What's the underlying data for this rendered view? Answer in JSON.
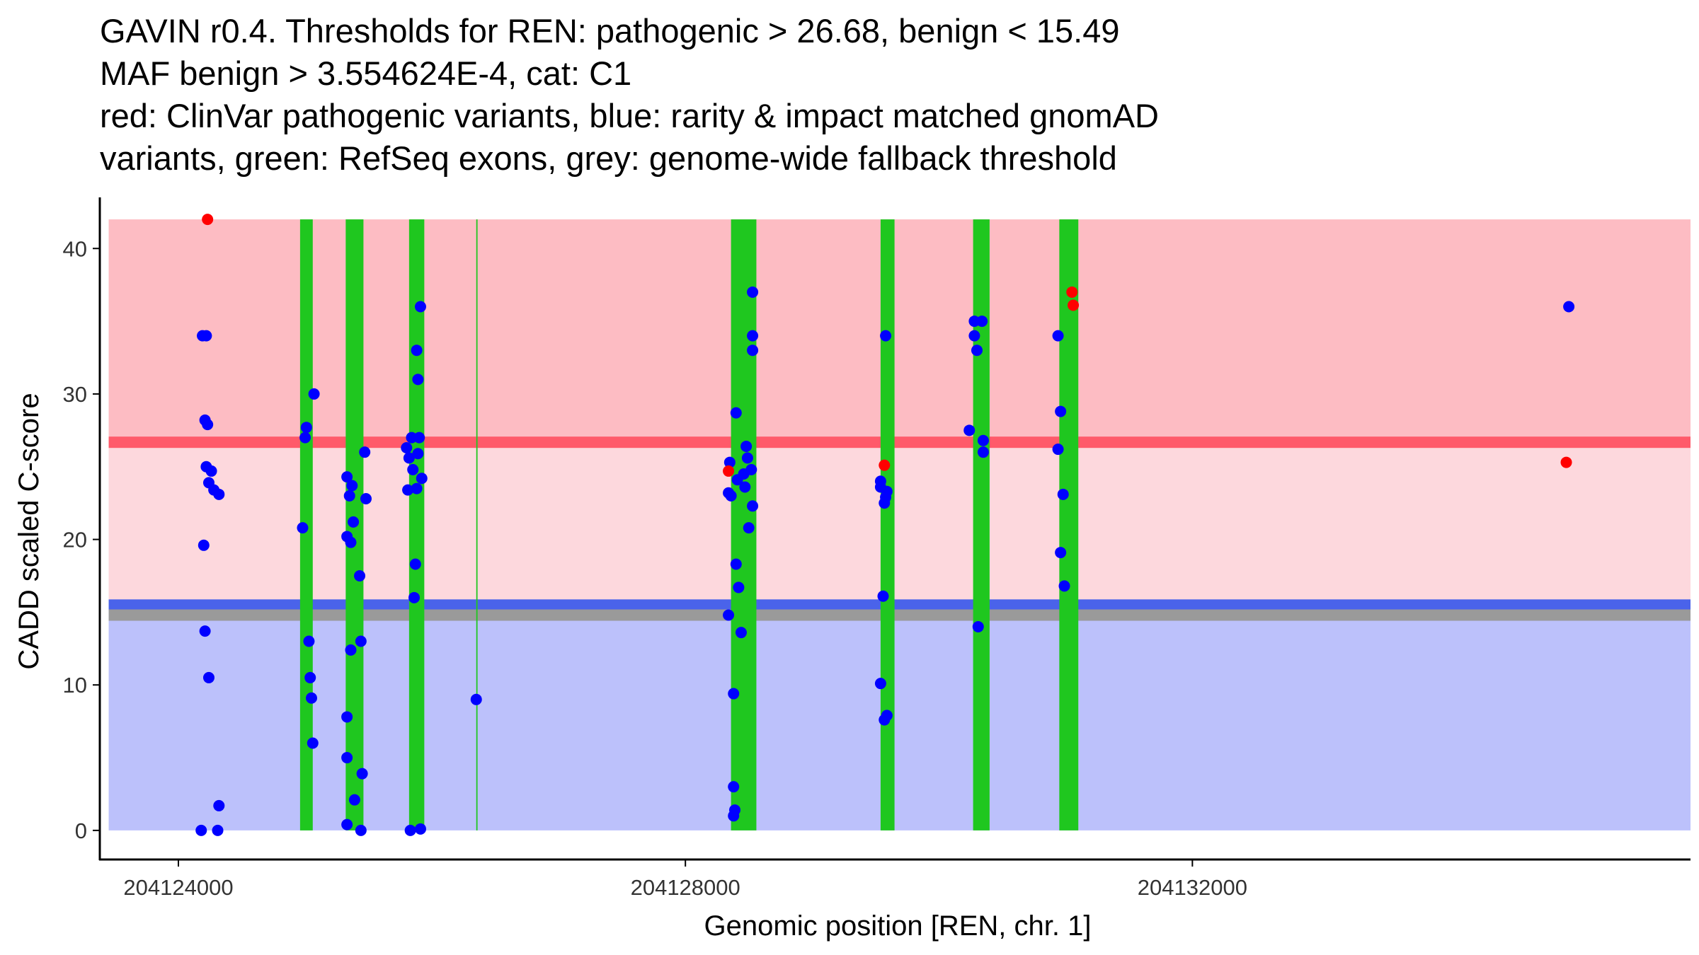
{
  "chart_data": {
    "type": "scatter",
    "title_lines": [
      "GAVIN r0.4. Thresholds for REN: pathogenic > 26.68, benign < 15.49",
      "MAF benign > 3.554624E-4, cat: C1",
      "red: ClinVar pathogenic variants, blue: rarity & impact matched gnomAD",
      "variants, green: RefSeq exons, grey: genome-wide fallback threshold"
    ],
    "xlabel": "Genomic position [REN, chr. 1]",
    "ylabel": "CADD scaled C-score",
    "xlim": [
      204123380,
      204135930
    ],
    "ylim": [
      -2,
      44
    ],
    "x_ticks": [
      204124000,
      204128000,
      204132000
    ],
    "x_tick_labels": [
      "204124000",
      "204128000",
      "204132000"
    ],
    "y_ticks": [
      0,
      10,
      20,
      30,
      40
    ],
    "y_tick_labels": [
      "0",
      "10",
      "20",
      "30",
      "40"
    ],
    "region_x_range": [
      204123450,
      204135930
    ],
    "bands": [
      {
        "name": "pathogenic-zone",
        "y0": 26.68,
        "y1": 42,
        "color": "#fdbcc3"
      },
      {
        "name": "uncertain-zone",
        "y0": 15.49,
        "y1": 26.68,
        "color": "#fdd8dd"
      },
      {
        "name": "benign-zone",
        "y0": 0,
        "y1": 15.49,
        "color": "#bcc1fb"
      }
    ],
    "threshold_lines": [
      {
        "name": "pathogenic-threshold",
        "y": 26.68,
        "color": "#ff5a6a"
      },
      {
        "name": "benign-threshold",
        "y": 15.49,
        "color": "#4a63ea"
      },
      {
        "name": "fallback-threshold",
        "y": 14.8,
        "color": "#9a9a9a"
      }
    ],
    "exons": [
      {
        "start": 204124960,
        "end": 204125060
      },
      {
        "start": 204125320,
        "end": 204125460
      },
      {
        "start": 204125820,
        "end": 204125940
      },
      {
        "start": 204126350,
        "end": 204126360
      },
      {
        "start": 204128360,
        "end": 204128560
      },
      {
        "start": 204129540,
        "end": 204129650
      },
      {
        "start": 204130270,
        "end": 204130400
      },
      {
        "start": 204130950,
        "end": 204131100
      }
    ],
    "series": [
      {
        "name": "ClinVar pathogenic variants",
        "color": "#ff0000",
        "points": [
          {
            "x": 204124230,
            "y": 42
          },
          {
            "x": 204128340,
            "y": 24.7
          },
          {
            "x": 204129570,
            "y": 25.1
          },
          {
            "x": 204131050,
            "y": 37
          },
          {
            "x": 204131060,
            "y": 36.1
          },
          {
            "x": 204134950,
            "y": 25.3
          }
        ]
      },
      {
        "name": "rarity & impact matched gnomAD variants",
        "color": "#0000ff",
        "points": [
          {
            "x": 204124180,
            "y": 0
          },
          {
            "x": 204124310,
            "y": 0
          },
          {
            "x": 204124190,
            "y": 34
          },
          {
            "x": 204124220,
            "y": 34
          },
          {
            "x": 204124210,
            "y": 28.2
          },
          {
            "x": 204124230,
            "y": 27.9
          },
          {
            "x": 204124220,
            "y": 25
          },
          {
            "x": 204124260,
            "y": 24.7
          },
          {
            "x": 204124240,
            "y": 23.9
          },
          {
            "x": 204124280,
            "y": 23.4
          },
          {
            "x": 204124320,
            "y": 23.1
          },
          {
            "x": 204124200,
            "y": 19.6
          },
          {
            "x": 204124210,
            "y": 13.7
          },
          {
            "x": 204124240,
            "y": 10.5
          },
          {
            "x": 204124320,
            "y": 1.7
          },
          {
            "x": 204124980,
            "y": 20.8
          },
          {
            "x": 204125010,
            "y": 27.7
          },
          {
            "x": 204125000,
            "y": 27
          },
          {
            "x": 204125070,
            "y": 30
          },
          {
            "x": 204125030,
            "y": 13
          },
          {
            "x": 204125040,
            "y": 10.5
          },
          {
            "x": 204125050,
            "y": 9.1
          },
          {
            "x": 204125060,
            "y": 6
          },
          {
            "x": 204125330,
            "y": 24.3
          },
          {
            "x": 204125370,
            "y": 23.7
          },
          {
            "x": 204125350,
            "y": 23
          },
          {
            "x": 204125380,
            "y": 21.2
          },
          {
            "x": 204125330,
            "y": 20.2
          },
          {
            "x": 204125360,
            "y": 19.8
          },
          {
            "x": 204125430,
            "y": 17.5
          },
          {
            "x": 204125470,
            "y": 26
          },
          {
            "x": 204125480,
            "y": 22.8
          },
          {
            "x": 204125440,
            "y": 13
          },
          {
            "x": 204125360,
            "y": 12.4
          },
          {
            "x": 204125330,
            "y": 7.8
          },
          {
            "x": 204125330,
            "y": 5
          },
          {
            "x": 204125450,
            "y": 3.9
          },
          {
            "x": 204125390,
            "y": 2.1
          },
          {
            "x": 204125330,
            "y": 0.4
          },
          {
            "x": 204125440,
            "y": 0
          },
          {
            "x": 204125800,
            "y": 26.3
          },
          {
            "x": 204125840,
            "y": 27
          },
          {
            "x": 204125900,
            "y": 27
          },
          {
            "x": 204125820,
            "y": 25.6
          },
          {
            "x": 204125890,
            "y": 25.9
          },
          {
            "x": 204125850,
            "y": 24.8
          },
          {
            "x": 204125920,
            "y": 24.2
          },
          {
            "x": 204125810,
            "y": 23.4
          },
          {
            "x": 204125880,
            "y": 23.5
          },
          {
            "x": 204125860,
            "y": 16
          },
          {
            "x": 204125870,
            "y": 18.3
          },
          {
            "x": 204125880,
            "y": 33
          },
          {
            "x": 204125890,
            "y": 31
          },
          {
            "x": 204125910,
            "y": 36
          },
          {
            "x": 204125830,
            "y": 0
          },
          {
            "x": 204125910,
            "y": 0.1
          },
          {
            "x": 204126350,
            "y": 9
          },
          {
            "x": 204128350,
            "y": 25.3
          },
          {
            "x": 204128340,
            "y": 23.2
          },
          {
            "x": 204128360,
            "y": 23
          },
          {
            "x": 204128400,
            "y": 28.7
          },
          {
            "x": 204128410,
            "y": 24.1
          },
          {
            "x": 204128460,
            "y": 24.5
          },
          {
            "x": 204128480,
            "y": 26.4
          },
          {
            "x": 204128490,
            "y": 25.6
          },
          {
            "x": 204128520,
            "y": 24.8
          },
          {
            "x": 204128470,
            "y": 23.6
          },
          {
            "x": 204128530,
            "y": 22.3
          },
          {
            "x": 204128500,
            "y": 20.8
          },
          {
            "x": 204128400,
            "y": 18.3
          },
          {
            "x": 204128420,
            "y": 16.7
          },
          {
            "x": 204128340,
            "y": 14.8
          },
          {
            "x": 204128440,
            "y": 13.6
          },
          {
            "x": 204128380,
            "y": 9.4
          },
          {
            "x": 204128380,
            "y": 3
          },
          {
            "x": 204128390,
            "y": 1.4
          },
          {
            "x": 204128380,
            "y": 1
          },
          {
            "x": 204128530,
            "y": 37
          },
          {
            "x": 204128530,
            "y": 34
          },
          {
            "x": 204128530,
            "y": 33
          },
          {
            "x": 204129540,
            "y": 24
          },
          {
            "x": 204129540,
            "y": 23.6
          },
          {
            "x": 204129590,
            "y": 23.3
          },
          {
            "x": 204129580,
            "y": 22.9
          },
          {
            "x": 204129570,
            "y": 22.5
          },
          {
            "x": 204129560,
            "y": 16.1
          },
          {
            "x": 204129540,
            "y": 10.1
          },
          {
            "x": 204129570,
            "y": 7.6
          },
          {
            "x": 204129590,
            "y": 7.9
          },
          {
            "x": 204129580,
            "y": 34
          },
          {
            "x": 204130240,
            "y": 27.5
          },
          {
            "x": 204130280,
            "y": 35
          },
          {
            "x": 204130340,
            "y": 35
          },
          {
            "x": 204130280,
            "y": 34
          },
          {
            "x": 204130300,
            "y": 33
          },
          {
            "x": 204130350,
            "y": 26.8
          },
          {
            "x": 204130350,
            "y": 26
          },
          {
            "x": 204130310,
            "y": 14
          },
          {
            "x": 204130940,
            "y": 34
          },
          {
            "x": 204130960,
            "y": 28.8
          },
          {
            "x": 204130940,
            "y": 26.2
          },
          {
            "x": 204130980,
            "y": 23.1
          },
          {
            "x": 204130960,
            "y": 19.1
          },
          {
            "x": 204130990,
            "y": 16.8
          },
          {
            "x": 204134970,
            "y": 36
          }
        ]
      }
    ]
  }
}
